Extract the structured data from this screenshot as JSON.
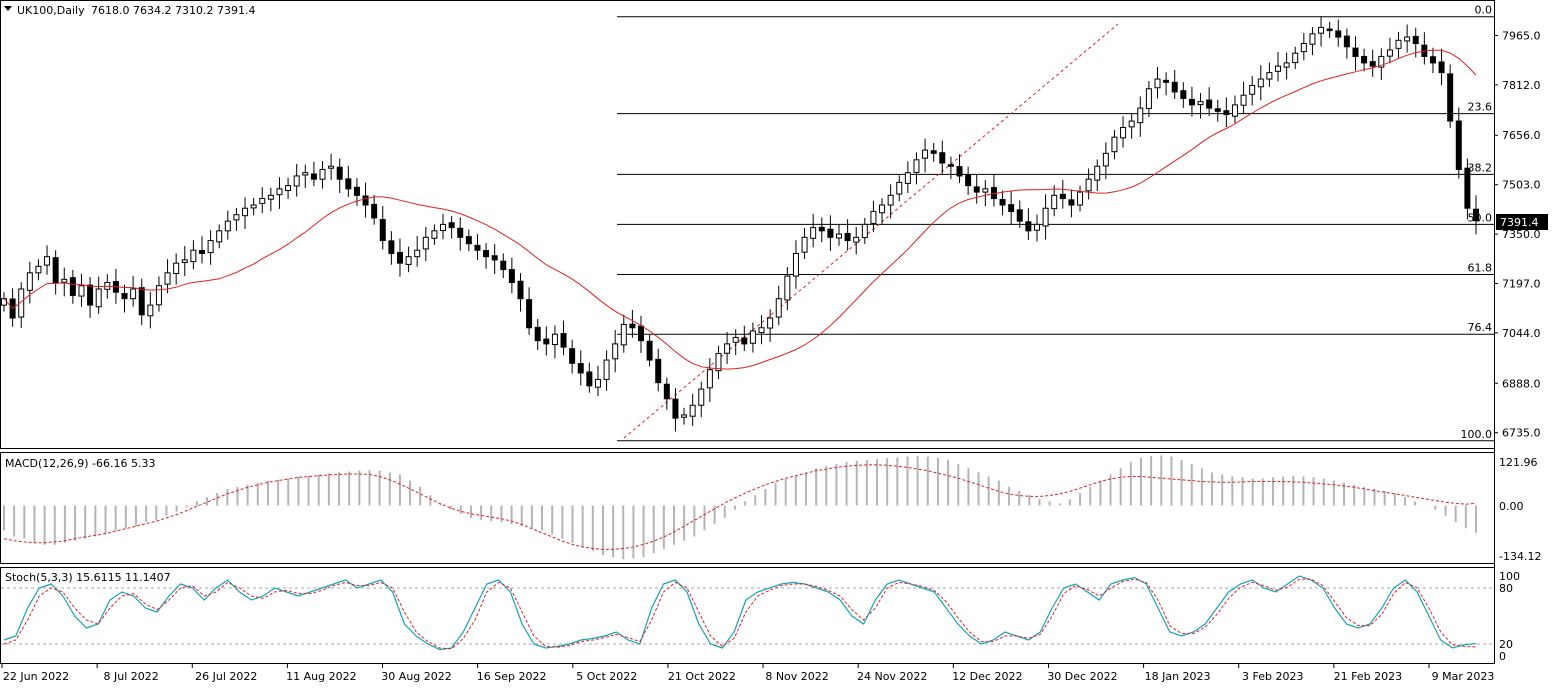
{
  "header": {
    "symbol": "UK100,Daily",
    "ohlc": "7618.0 7634.2 7310.2 7391.4"
  },
  "price_panel": {
    "current_price": "7391.4",
    "y_ticks": [
      "7965.0",
      "7812.0",
      "7656.0",
      "7503.0",
      "7350.0",
      "7197.0",
      "7044.0",
      "6888.0",
      "6735.0"
    ]
  },
  "fib_levels": [
    {
      "label": "0.0",
      "value": 8023
    },
    {
      "label": "23.6",
      "value": 7723
    },
    {
      "label": "38.2",
      "value": 7535
    },
    {
      "label": "50.0",
      "value": 7380
    },
    {
      "label": "61.8",
      "value": 7225
    },
    {
      "label": "76.4",
      "value": 7040
    },
    {
      "label": "100.0",
      "value": 6710
    }
  ],
  "macd_panel": {
    "label": "MACD(12,26,9) -66.16 5.33",
    "y_ticks": [
      "121.96",
      "0.00",
      "-134.12"
    ]
  },
  "stoch_panel": {
    "label": "Stoch(5,3,3) 15.6115 11.1407",
    "y_ticks": [
      "100",
      "80",
      "20",
      "0"
    ]
  },
  "x_axis": {
    "labels": [
      "22 Jun 2022",
      "8 Jul 2022",
      "26 Jul 2022",
      "11 Aug 2022",
      "30 Aug 2022",
      "16 Sep 2022",
      "5 Oct 2022",
      "21 Oct 2022",
      "8 Nov 2022",
      "24 Nov 2022",
      "12 Dec 2022",
      "30 Dec 2022",
      "18 Jan 2023",
      "3 Feb 2023",
      "21 Feb 2023",
      "9 Mar 2023"
    ]
  },
  "colors": {
    "ma_line": "#dd2222",
    "trendline": "#dd2222",
    "signal_line": "#dd2222",
    "stoch_main": "#17a2b8",
    "stoch_signal": "#dd2222",
    "histogram": "#b4b4b4",
    "level_line": "#000000"
  },
  "chart_data": {
    "type": "candlestick",
    "ylim": [
      6700,
      8050
    ],
    "closes": [
      7150,
      7090,
      7180,
      7230,
      7250,
      7280,
      7200,
      7210,
      7160,
      7190,
      7130,
      7180,
      7200,
      7170,
      7150,
      7180,
      7100,
      7130,
      7190,
      7230,
      7260,
      7270,
      7300,
      7290,
      7330,
      7360,
      7390,
      7410,
      7430,
      7440,
      7460,
      7470,
      7490,
      7500,
      7530,
      7540,
      7520,
      7550,
      7560,
      7520,
      7490,
      7470,
      7440,
      7400,
      7330,
      7290,
      7260,
      7280,
      7300,
      7340,
      7360,
      7380,
      7370,
      7340,
      7320,
      7300,
      7280,
      7270,
      7240,
      7200,
      7150,
      7060,
      7020,
      7010,
      7040,
      7000,
      6950,
      6920,
      6880,
      6900,
      6960,
      7010,
      7070,
      7060,
      7020,
      6960,
      6890,
      6840,
      6780,
      6790,
      6820,
      6870,
      6930,
      6980,
      7010,
      7030,
      7010,
      7050,
      7060,
      7090,
      7150,
      7220,
      7290,
      7340,
      7370,
      7360,
      7340,
      7350,
      7330,
      7340,
      7380,
      7420,
      7440,
      7470,
      7510,
      7540,
      7580,
      7610,
      7600,
      7570,
      7560,
      7530,
      7500,
      7480,
      7490,
      7460,
      7440,
      7420,
      7390,
      7360,
      7380,
      7430,
      7470,
      7460,
      7440,
      7480,
      7520,
      7560,
      7600,
      7650,
      7680,
      7700,
      7740,
      7800,
      7830,
      7820,
      7790,
      7770,
      7750,
      7760,
      7740,
      7730,
      7720,
      7750,
      7780,
      7810,
      7830,
      7850,
      7870,
      7880,
      7910,
      7940,
      7970,
      7990,
      7980,
      7960,
      7930,
      7900,
      7880,
      7870,
      7900,
      7920,
      7950,
      7960,
      7940,
      7900,
      7880,
      7850,
      7700,
      7550,
      7430,
      7391.4
    ],
    "macd": [
      -60,
      -75,
      -80,
      -90,
      -95,
      -95,
      -90,
      -85,
      -80,
      -75,
      -70,
      -60,
      -55,
      -50,
      -40,
      -35,
      -25,
      -15,
      -5,
      10,
      20,
      30,
      40,
      45,
      50,
      55,
      60,
      62,
      65,
      70,
      72,
      75,
      78,
      80,
      82,
      85,
      85,
      84,
      80,
      75,
      60,
      45,
      25,
      5,
      -10,
      -20,
      -30,
      -35,
      -38,
      -40,
      -45,
      -50,
      -55,
      -60,
      -70,
      -80,
      -90,
      -100,
      -110,
      -120,
      -125,
      -130,
      -128,
      -125,
      -115,
      -105,
      -95,
      -85,
      -75,
      -60,
      -45,
      -30,
      -10,
      10,
      25,
      40,
      55,
      65,
      72,
      80,
      90,
      95,
      100,
      105,
      108,
      110,
      112,
      114,
      116,
      118,
      120,
      118,
      115,
      110,
      100,
      90,
      80,
      70,
      60,
      45,
      35,
      25,
      15,
      10,
      5,
      15,
      30,
      45,
      60,
      75,
      90,
      105,
      115,
      120,
      121,
      118,
      110,
      100,
      90,
      80,
      75,
      70,
      68,
      65,
      65,
      68,
      70,
      72,
      70,
      68,
      65,
      60,
      55,
      50,
      45,
      40,
      35,
      30,
      20,
      10,
      0,
      -10,
      -25,
      -40,
      -55,
      -66
    ],
    "signal": [
      -80,
      -85,
      -88,
      -90,
      -90,
      -88,
      -85,
      -80,
      -76,
      -72,
      -68,
      -62,
      -56,
      -50,
      -44,
      -38,
      -30,
      -22,
      -12,
      -2,
      8,
      18,
      28,
      36,
      44,
      50,
      56,
      60,
      64,
      68,
      70,
      72,
      74,
      75,
      76,
      76,
      75,
      70,
      62,
      52,
      40,
      28,
      16,
      4,
      -6,
      -14,
      -20,
      -24,
      -28,
      -32,
      -38,
      -46,
      -56,
      -66,
      -76,
      -86,
      -94,
      -100,
      -104,
      -106,
      -106,
      -104,
      -100,
      -94,
      -86,
      -76,
      -64,
      -50,
      -36,
      -22,
      -8,
      6,
      18,
      30,
      40,
      50,
      58,
      66,
      72,
      78,
      84,
      88,
      92,
      95,
      97,
      98,
      98,
      97,
      95,
      92,
      88,
      84,
      78,
      72,
      66,
      58,
      50,
      42,
      34,
      28,
      24,
      22,
      22,
      24,
      28,
      34,
      42,
      50,
      58,
      64,
      68,
      70,
      70,
      68,
      66,
      64,
      62,
      60,
      58,
      57,
      56,
      56,
      57,
      58,
      58,
      58,
      58,
      57,
      56,
      54,
      52,
      50,
      47,
      44,
      40,
      36,
      32,
      28,
      24,
      20,
      16,
      12,
      8,
      5,
      3,
      5.33
    ],
    "stoch_main": [
      20,
      25,
      60,
      85,
      90,
      75,
      50,
      35,
      40,
      70,
      80,
      75,
      60,
      55,
      75,
      90,
      85,
      70,
      85,
      95,
      80,
      70,
      75,
      85,
      80,
      75,
      80,
      85,
      90,
      95,
      85,
      90,
      95,
      80,
      40,
      25,
      15,
      8,
      10,
      30,
      60,
      90,
      95,
      80,
      40,
      15,
      10,
      12,
      15,
      20,
      22,
      25,
      30,
      20,
      15,
      60,
      90,
      95,
      80,
      40,
      15,
      10,
      30,
      70,
      80,
      85,
      90,
      92,
      90,
      85,
      80,
      70,
      50,
      40,
      70,
      90,
      95,
      90,
      85,
      80,
      60,
      40,
      25,
      15,
      20,
      30,
      25,
      20,
      30,
      60,
      85,
      90,
      80,
      70,
      90,
      95,
      98,
      90,
      60,
      30,
      25,
      30,
      40,
      60,
      80,
      90,
      95,
      85,
      80,
      90,
      100,
      95,
      85,
      60,
      40,
      35,
      40,
      60,
      85,
      95,
      80,
      50,
      20,
      10,
      14,
      15.6
    ],
    "stoch_signal": [
      15,
      20,
      45,
      75,
      85,
      80,
      60,
      45,
      40,
      60,
      75,
      78,
      65,
      58,
      70,
      85,
      88,
      75,
      80,
      92,
      85,
      75,
      72,
      80,
      82,
      78,
      78,
      82,
      88,
      92,
      88,
      88,
      92,
      85,
      55,
      30,
      18,
      10,
      9,
      22,
      45,
      80,
      92,
      85,
      55,
      25,
      12,
      11,
      13,
      18,
      20,
      23,
      27,
      23,
      18,
      45,
      80,
      92,
      85,
      55,
      25,
      12,
      22,
      55,
      75,
      82,
      88,
      90,
      90,
      87,
      82,
      75,
      58,
      45,
      60,
      85,
      92,
      90,
      87,
      82,
      68,
      48,
      30,
      18,
      18,
      25,
      25,
      22,
      27,
      50,
      78,
      88,
      83,
      75,
      85,
      93,
      96,
      92,
      70,
      38,
      28,
      28,
      36,
      52,
      72,
      86,
      92,
      88,
      82,
      86,
      96,
      96,
      88,
      68,
      48,
      38,
      38,
      52,
      78,
      92,
      85,
      60,
      30,
      14,
      12,
      11.1
    ]
  }
}
